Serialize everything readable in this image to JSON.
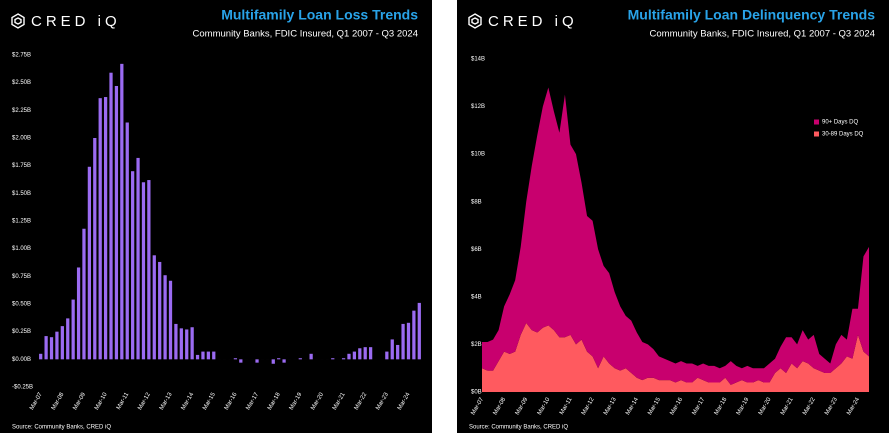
{
  "chart_data": [
    {
      "type": "bar",
      "title": "Multifamily Loan Loss Trends",
      "subtitle": "Community Banks, FDIC Insured, Q1 2007 - Q3 2024",
      "logo": "CRED iQ",
      "source": "Source: Community Banks, CRED iQ",
      "color": "#9b6bf2",
      "categories": [
        "Mar-07",
        null,
        null,
        null,
        "Mar-08",
        null,
        null,
        null,
        "Mar-09",
        null,
        null,
        null,
        "Mar-10",
        null,
        null,
        null,
        "Mar-11",
        null,
        null,
        null,
        "Mar-12",
        null,
        null,
        null,
        "Mar-13",
        null,
        null,
        null,
        "Mar-14",
        null,
        null,
        null,
        "Mar-15",
        null,
        null,
        null,
        "Mar-16",
        null,
        null,
        null,
        "Mar-17",
        null,
        null,
        null,
        "Mar-18",
        null,
        null,
        null,
        "Mar-19",
        null,
        null,
        null,
        "Mar-20",
        null,
        null,
        null,
        "Mar-21",
        null,
        null,
        null,
        "Mar-22",
        null,
        null,
        null,
        "Mar-23",
        null,
        null,
        null,
        "Mar-24",
        null,
        null
      ],
      "values": [
        0.05,
        0.21,
        0.2,
        0.25,
        0.3,
        0.37,
        0.54,
        0.83,
        1.18,
        1.74,
        2.0,
        2.36,
        2.37,
        2.59,
        2.47,
        2.67,
        2.14,
        1.7,
        1.82,
        1.6,
        1.62,
        0.94,
        0.88,
        0.76,
        0.71,
        0.32,
        0.28,
        0.27,
        0.29,
        0.04,
        0.07,
        0.07,
        0.07,
        0.0,
        0.0,
        0.0,
        0.01,
        -0.03,
        0.0,
        0.0,
        -0.03,
        0.0,
        0.0,
        -0.04,
        0.01,
        -0.03,
        0.0,
        0.0,
        0.01,
        0.0,
        0.05,
        0.0,
        0.0,
        0.0,
        0.01,
        0.0,
        0.01,
        0.05,
        0.07,
        0.1,
        0.11,
        0.11,
        0.0,
        0.0,
        0.07,
        0.18,
        0.13,
        0.32,
        0.33,
        0.44,
        0.51
      ],
      "ylim": [
        -0.25,
        2.75
      ],
      "yticks": [
        {
          "value": -0.25,
          "label": "-$0.25B"
        },
        {
          "value": 0,
          "label": "$0.00B"
        },
        {
          "value": 0.25,
          "label": "$0.25B"
        },
        {
          "value": 0.5,
          "label": "$0.50B"
        },
        {
          "value": 0.75,
          "label": "$0.75B"
        },
        {
          "value": 1,
          "label": "$1.00B"
        },
        {
          "value": 1.25,
          "label": "$1.25B"
        },
        {
          "value": 1.5,
          "label": "$1.50B"
        },
        {
          "value": 1.75,
          "label": "$1.75B"
        },
        {
          "value": 2,
          "label": "$2.00B"
        },
        {
          "value": 2.25,
          "label": "$2.25B"
        },
        {
          "value": 2.5,
          "label": "$2.50B"
        },
        {
          "value": 2.75,
          "label": "$2.75B"
        }
      ],
      "grid": false
    },
    {
      "type": "stacked_area",
      "title": "Multifamily Loan Delinquency Trends",
      "subtitle": "Community Banks, FDIC Insured, Q1 2007 - Q3 2024",
      "logo": "CRED iQ",
      "source": "Source: Community Banks, CRED iQ",
      "legend": "upper right",
      "categories": [
        "Mar-07",
        null,
        null,
        null,
        "Mar-08",
        null,
        null,
        null,
        "Mar-09",
        null,
        null,
        null,
        "Mar-10",
        null,
        null,
        null,
        "Mar-11",
        null,
        null,
        null,
        "Mar-12",
        null,
        null,
        null,
        "Mar-13",
        null,
        null,
        null,
        "Mar-14",
        null,
        null,
        null,
        "Mar-15",
        null,
        null,
        null,
        "Mar-16",
        null,
        null,
        null,
        "Mar-17",
        null,
        null,
        null,
        "Mar-18",
        null,
        null,
        null,
        "Mar-19",
        null,
        null,
        null,
        "Mar-20",
        null,
        null,
        null,
        "Mar-21",
        null,
        null,
        null,
        "Mar-22",
        null,
        null,
        null,
        "Mar-23",
        null,
        null,
        null,
        "Mar-24",
        null,
        null
      ],
      "series": [
        {
          "name": "30-89 Days DQ",
          "color": "#ff5a5f",
          "values": [
            1.0,
            0.9,
            0.9,
            1.3,
            1.7,
            1.6,
            1.7,
            2.4,
            2.9,
            2.6,
            2.5,
            2.7,
            2.8,
            2.6,
            2.3,
            2.3,
            2.4,
            2.0,
            2.2,
            1.7,
            1.5,
            1.0,
            1.5,
            1.2,
            1.0,
            0.9,
            1.0,
            0.8,
            0.6,
            0.5,
            0.6,
            0.6,
            0.5,
            0.5,
            0.5,
            0.4,
            0.5,
            0.4,
            0.4,
            0.6,
            0.5,
            0.4,
            0.4,
            0.4,
            0.6,
            0.3,
            0.4,
            0.5,
            0.4,
            0.4,
            0.5,
            0.4,
            0.4,
            0.8,
            1.0,
            0.8,
            1.2,
            1.0,
            1.3,
            1.2,
            1.0,
            0.9,
            0.8,
            0.8,
            1.0,
            1.2,
            1.5,
            1.4,
            2.4,
            1.7,
            1.5
          ]
        },
        {
          "name": "90+ Days DQ",
          "color": "#c8006e",
          "values": [
            1.1,
            1.2,
            1.3,
            1.3,
            1.9,
            2.5,
            3.0,
            3.7,
            5.1,
            6.9,
            8.3,
            9.3,
            10.0,
            9.2,
            8.6,
            10.2,
            8.0,
            8.0,
            6.6,
            5.7,
            5.7,
            5.0,
            3.8,
            3.8,
            3.2,
            2.7,
            2.2,
            2.2,
            1.9,
            1.6,
            1.4,
            1.2,
            1.0,
            0.9,
            0.8,
            0.8,
            0.8,
            0.8,
            0.8,
            0.5,
            0.7,
            0.7,
            0.7,
            0.6,
            0.5,
            1.0,
            0.7,
            0.5,
            0.7,
            0.6,
            0.5,
            0.6,
            0.8,
            0.6,
            0.9,
            1.5,
            1.1,
            1.0,
            1.3,
            1.0,
            1.4,
            0.7,
            0.6,
            0.4,
            1.0,
            1.2,
            0.7,
            2.1,
            1.1,
            4.0,
            4.6
          ]
        }
      ],
      "ylim": [
        0,
        14
      ],
      "yticks": [
        {
          "value": 0,
          "label": "$0B"
        },
        {
          "value": 2,
          "label": "$2B"
        },
        {
          "value": 4,
          "label": "$4B"
        },
        {
          "value": 6,
          "label": "$6B"
        },
        {
          "value": 8,
          "label": "$8B"
        },
        {
          "value": 10,
          "label": "$10B"
        },
        {
          "value": 12,
          "label": "$12B"
        },
        {
          "value": 14,
          "label": "$14B"
        }
      ],
      "grid": false
    }
  ]
}
